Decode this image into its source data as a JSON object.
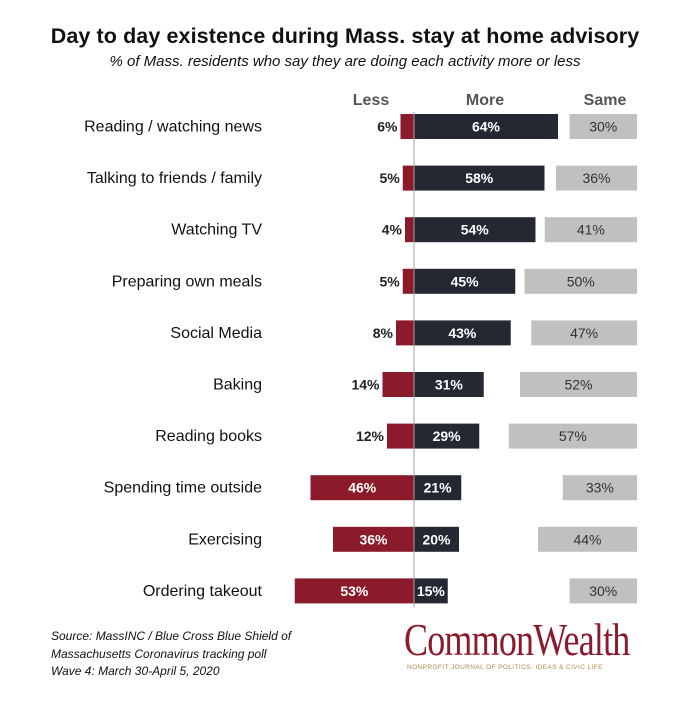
{
  "title": "Day to day existence during Mass. stay at home advisory",
  "subtitle": "% of Mass. residents who say they are doing each activity more or less",
  "chart_data": {
    "type": "bar",
    "columns": [
      "Less",
      "More",
      "Same"
    ],
    "categories": [
      "Reading / watching news",
      "Talking to friends / family",
      "Watching TV",
      "Preparing own meals",
      "Social Media",
      "Baking",
      "Reading books",
      "Spending time outside",
      "Exercising",
      "Ordering takeout"
    ],
    "series": [
      {
        "name": "Less",
        "color": "#8b1a2b",
        "values": [
          6,
          5,
          4,
          5,
          8,
          14,
          12,
          46,
          36,
          53
        ],
        "labels": [
          "6%",
          "5%",
          "4%",
          "5%",
          "8%",
          "14%",
          "12%",
          "46%",
          "36%",
          "53%"
        ]
      },
      {
        "name": "More",
        "color": "#232833",
        "values": [
          64,
          58,
          54,
          45,
          43,
          31,
          29,
          21,
          20,
          15
        ],
        "labels": [
          "64%",
          "58%",
          "54%",
          "45%",
          "43%",
          "31%",
          "29%",
          "21%",
          "20%",
          "15%"
        ]
      },
      {
        "name": "Same",
        "color": "#c0c0c0",
        "values": [
          30,
          36,
          41,
          50,
          47,
          52,
          57,
          33,
          44,
          30
        ],
        "labels": [
          "30%",
          "36%",
          "41%",
          "50%",
          "47%",
          "52%",
          "57%",
          "33%",
          "44%",
          "30%"
        ]
      }
    ]
  },
  "source_lines": [
    "Source: MassINC / Blue Cross Blue Shield of",
    "Massachusetts Coronavirus tracking poll",
    "Wave 4: March 30-April 5, 2020"
  ],
  "brand": {
    "name": "CommonWealth",
    "tagline": "NONPROFIT JOURNAL OF POLITICS, IDEAS & CIVIC LIFE"
  }
}
